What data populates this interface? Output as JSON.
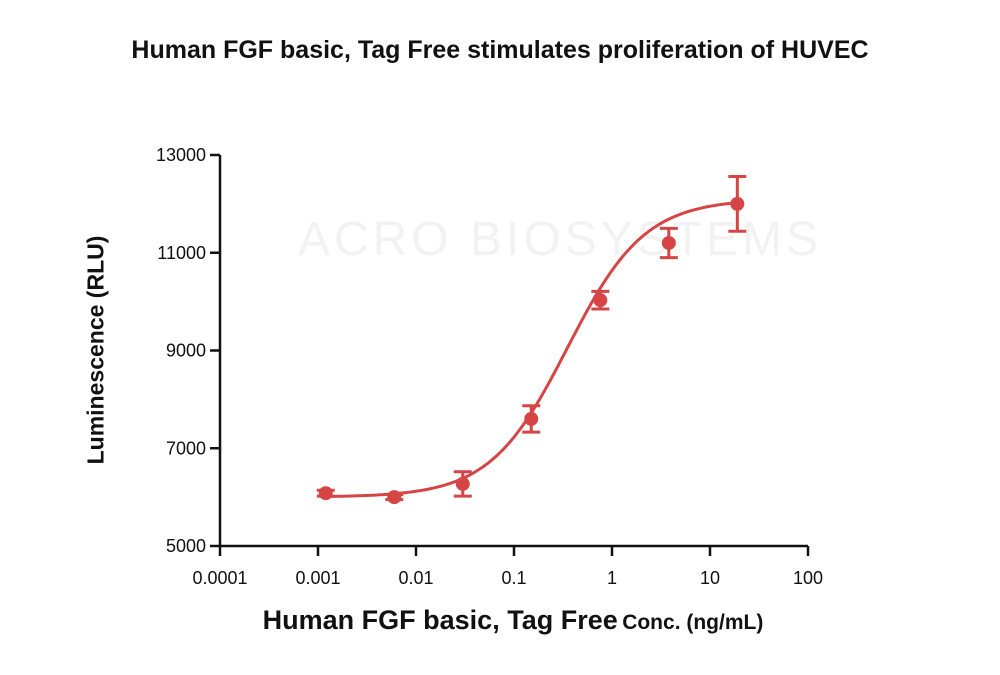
{
  "chart_data": {
    "type": "scatter",
    "title": "Human FGF basic, Tag Free stimulates proliferation of HUVEC",
    "xlabel_main": "Human FGF basic, Tag Free",
    "xlabel_unit": "Conc. (ng/mL)",
    "ylabel": "Luminescence (RLU)",
    "xscale": "log",
    "xlim": [
      0.0001,
      100
    ],
    "ylim": [
      5000,
      13000
    ],
    "xticks": [
      "0.0001",
      "0.001",
      "0.01",
      "0.1",
      "1",
      "10",
      "100"
    ],
    "yticks": [
      "5000",
      "7000",
      "9000",
      "11000",
      "13000"
    ],
    "color": "#d64545",
    "points": [
      {
        "x": 0.0012,
        "y": 6080,
        "err": 60
      },
      {
        "x": 0.006,
        "y": 6000,
        "err": 50
      },
      {
        "x": 0.03,
        "y": 6270,
        "err": 250
      },
      {
        "x": 0.15,
        "y": 7600,
        "err": 270
      },
      {
        "x": 0.76,
        "y": 10030,
        "err": 180
      },
      {
        "x": 3.8,
        "y": 11200,
        "err": 300
      },
      {
        "x": 19,
        "y": 12000,
        "err": 560
      }
    ],
    "fit": {
      "model": "4PL",
      "bottom": 6000,
      "top": 12100,
      "ec50": 0.35,
      "hill": 1.1
    },
    "grid": false,
    "watermark": "ACRO BIOSYSTEMS"
  }
}
